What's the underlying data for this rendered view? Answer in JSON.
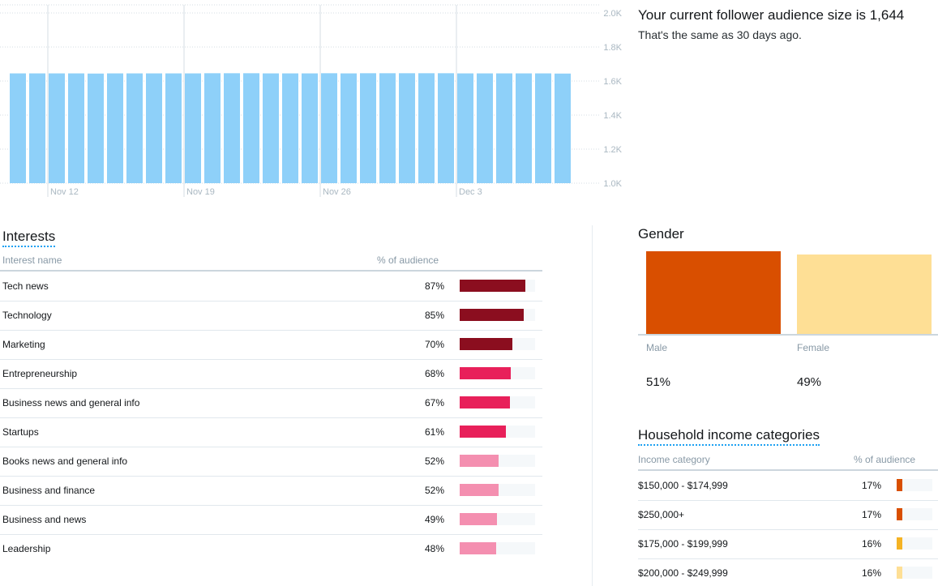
{
  "follower_summary": {
    "title": "Your current follower audience size is 1,644",
    "subtitle": "That's the same as 30 days ago."
  },
  "chart_data": [
    {
      "type": "bar",
      "title": "",
      "xlabel": "",
      "ylabel": "",
      "x_tick_labels": [
        "Nov 12",
        "Nov 19",
        "Nov 26",
        "Dec 3"
      ],
      "y_tick_labels": [
        "2.0K",
        "1.8K",
        "1.6K",
        "1.4K",
        "1.2K",
        "1.0K"
      ],
      "ylim": [
        1000,
        2000
      ],
      "grid": true,
      "values": [
        1645,
        1645,
        1645,
        1645,
        1644,
        1645,
        1645,
        1645,
        1645,
        1645,
        1646,
        1646,
        1646,
        1645,
        1645,
        1645,
        1646,
        1645,
        1646,
        1646,
        1646,
        1646,
        1646,
        1645,
        1645,
        1645,
        1645,
        1645,
        1644
      ]
    },
    {
      "type": "table",
      "title": "Interests",
      "columns": [
        "Interest name",
        "% of audience"
      ],
      "rows": [
        {
          "name": "Tech news",
          "pct_label": "87%",
          "value": 87,
          "color": "#8b0e1f"
        },
        {
          "name": "Technology",
          "pct_label": "85%",
          "value": 85,
          "color": "#8b0e1f"
        },
        {
          "name": "Marketing",
          "pct_label": "70%",
          "value": 70,
          "color": "#8b0e1f"
        },
        {
          "name": "Entrepreneurship",
          "pct_label": "68%",
          "value": 68,
          "color": "#e8205a"
        },
        {
          "name": "Business news and general info",
          "pct_label": "67%",
          "value": 67,
          "color": "#e8205a"
        },
        {
          "name": "Startups",
          "pct_label": "61%",
          "value": 61,
          "color": "#e8205a"
        },
        {
          "name": "Books news and general info",
          "pct_label": "52%",
          "value": 52,
          "color": "#f48fb0"
        },
        {
          "name": "Business and finance",
          "pct_label": "52%",
          "value": 52,
          "color": "#f48fb0"
        },
        {
          "name": "Business and news",
          "pct_label": "49%",
          "value": 49,
          "color": "#f48fb0"
        },
        {
          "name": "Leadership",
          "pct_label": "48%",
          "value": 48,
          "color": "#f48fb0"
        }
      ]
    },
    {
      "type": "bar",
      "title": "Gender",
      "categories": [
        "Male",
        "Female"
      ],
      "values": [
        51,
        49
      ],
      "value_labels": [
        "51%",
        "49%"
      ],
      "colors": [
        "#d94f00",
        "#fedf95"
      ]
    },
    {
      "type": "table",
      "title": "Household income categories",
      "columns": [
        "Income category",
        "% of audience"
      ],
      "rows": [
        {
          "name": "$150,000 - $174,999",
          "pct_label": "17%",
          "value": 17,
          "color": "#d94f00"
        },
        {
          "name": "$250,000+",
          "pct_label": "17%",
          "value": 17,
          "color": "#d94f00"
        },
        {
          "name": "$175,000 - $199,999",
          "pct_label": "16%",
          "value": 16,
          "color": "#f5b324"
        },
        {
          "name": "$200,000 - $249,999",
          "pct_label": "16%",
          "value": 16,
          "color": "#fedf95"
        }
      ]
    }
  ]
}
